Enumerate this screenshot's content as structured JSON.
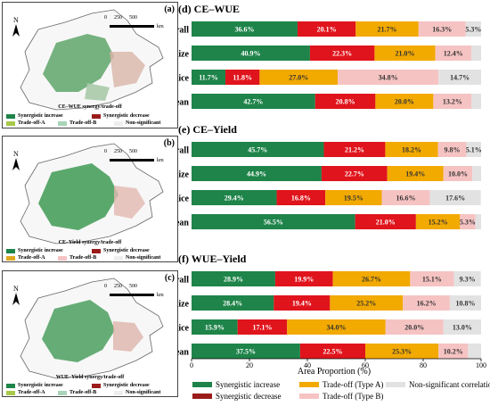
{
  "colors": {
    "synergistic_increase": "#1e8449",
    "synergistic_decrease": "#e0141c",
    "trade_off_a": "#f2a900",
    "trade_off_b": "#f6c3c3",
    "non_significant": "#e2e2e2"
  },
  "maps": [
    {
      "label": "(a)",
      "title": "CE–WUE synergy/trade-off",
      "legend": [
        "Synergistic increase",
        "Synergistic decrease",
        "Trade-off-A",
        "Trade-off-B",
        "Non-significant"
      ]
    },
    {
      "label": "(b)",
      "title": "CE–Yield synergy/trade-off",
      "legend": [
        "Synergistic increase",
        "Synergistic decrease",
        "Trade-off-A",
        "Trade-off-B",
        "Non-significant"
      ]
    },
    {
      "label": "(c)",
      "title": "WUE–Yield synergy/trade-off",
      "legend": [
        "Synergistic increase",
        "Synergistic decrease",
        "Trade-off-A",
        "Trade-off-B",
        "Non-significant"
      ]
    }
  ],
  "scale_bar": {
    "ticks": [
      "0",
      "250",
      "500"
    ],
    "unit": "km"
  },
  "north_label": "N",
  "chart_data": [
    {
      "type": "bar",
      "title": "(d) CE–WUE",
      "categories": [
        "Overall",
        "Maize",
        "Rice",
        "Soybean"
      ],
      "series": [
        {
          "name": "Synergistic increase",
          "values": [
            36.6,
            40.9,
            11.7,
            42.7
          ]
        },
        {
          "name": "Synergistic decrease",
          "values": [
            20.1,
            22.3,
            11.8,
            20.8
          ]
        },
        {
          "name": "Trade-off (Type A)",
          "values": [
            21.7,
            21.0,
            27.0,
            20.0
          ]
        },
        {
          "name": "Trade-off (Type B)",
          "values": [
            16.3,
            12.4,
            34.8,
            13.2
          ]
        },
        {
          "name": "Non-significant correlation",
          "values": [
            5.3,
            3.4,
            14.7,
            3.3
          ]
        }
      ],
      "labels": [
        [
          "36.6%",
          "20.1%",
          "21.7%",
          "16.3%",
          "5.3%"
        ],
        [
          "40.9%",
          "22.3%",
          "21.0%",
          "12.4%",
          ""
        ],
        [
          "11.7%",
          "11.8%",
          "27.0%",
          "34.8%",
          "14.7%"
        ],
        [
          "42.7%",
          "20.8%",
          "20.0%",
          "13.2%",
          ""
        ]
      ]
    },
    {
      "type": "bar",
      "title": "(e) CE–Yield",
      "categories": [
        "Overall",
        "Maize",
        "Rice",
        "Soybean"
      ],
      "series": [
        {
          "name": "Synergistic increase",
          "values": [
            45.7,
            44.9,
            29.4,
            56.5
          ]
        },
        {
          "name": "Synergistic decrease",
          "values": [
            21.2,
            22.7,
            16.8,
            21.0
          ]
        },
        {
          "name": "Trade-off (Type A)",
          "values": [
            18.2,
            19.4,
            19.5,
            15.2
          ]
        },
        {
          "name": "Trade-off (Type B)",
          "values": [
            9.8,
            10.0,
            16.6,
            5.3
          ]
        },
        {
          "name": "Non-significant correlation",
          "values": [
            5.1,
            3.0,
            17.6,
            2.0
          ]
        }
      ],
      "labels": [
        [
          "45.7%",
          "21.2%",
          "18.2%",
          "9.8%",
          "5.1%"
        ],
        [
          "44.9%",
          "22.7%",
          "19.4%",
          "10.0%",
          ""
        ],
        [
          "29.4%",
          "16.8%",
          "19.5%",
          "16.6%",
          "17.6%"
        ],
        [
          "56.5%",
          "21.0%",
          "15.2%",
          "5.3%",
          ""
        ]
      ]
    },
    {
      "type": "bar",
      "title": "(f) WUE–Yield",
      "categories": [
        "Overall",
        "Maize",
        "Rice",
        "Soybean"
      ],
      "series": [
        {
          "name": "Synergistic increase",
          "values": [
            28.9,
            28.4,
            15.9,
            37.5
          ]
        },
        {
          "name": "Synergistic decrease",
          "values": [
            19.9,
            19.4,
            17.1,
            22.5
          ]
        },
        {
          "name": "Trade-off (Type A)",
          "values": [
            26.7,
            25.2,
            34.0,
            25.3
          ]
        },
        {
          "name": "Trade-off (Type B)",
          "values": [
            15.1,
            16.2,
            20.0,
            10.2
          ]
        },
        {
          "name": "Non-significant correlation",
          "values": [
            9.3,
            10.8,
            13.0,
            4.5
          ]
        }
      ],
      "labels": [
        [
          "28.9%",
          "19.9%",
          "26.7%",
          "15.1%",
          "9.3%"
        ],
        [
          "28.4%",
          "19.4%",
          "25.2%",
          "16.2%",
          "10.8%"
        ],
        [
          "15.9%",
          "17.1%",
          "34.0%",
          "20.0%",
          "13.0%"
        ],
        [
          "37.5%",
          "22.5%",
          "25.3%",
          "10.2%",
          ""
        ]
      ]
    }
  ],
  "axis": {
    "xlabel": "Area Proportion (%)",
    "ticks": [
      "0",
      "20",
      "40",
      "60",
      "80",
      "100"
    ],
    "xlim": [
      0,
      100
    ]
  },
  "legend": [
    "Synergistic increase",
    "Trade-off (Type A)",
    "Non-significant correlation",
    "Synergistic decrease",
    "Trade-off (Type B)"
  ]
}
